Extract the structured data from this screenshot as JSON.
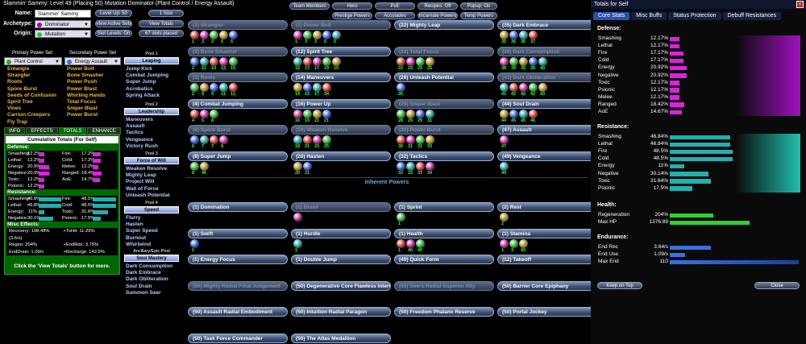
{
  "title": "Slammin' Sammy: Level 49 (Placing 50) Mutation Dominator (Plant Control / Energy Assault)",
  "name_label": "Name:",
  "name_value": "Slammin' Sammy",
  "archetype_label": "Archetype:",
  "archetype_value": "Dominator",
  "origin_label": "Origin:",
  "origin_value": "Mutation",
  "buttons": {
    "level_up": "Level Up: 50",
    "i_size": "1 Size",
    "view_active_sets": "View Active Sets",
    "view_totals": "View Totals",
    "slot_levels": "Slot Levels: On",
    "slots_placed": "67 slots placed"
  },
  "topbar": [
    "Team Members",
    "Hero",
    "PvE",
    "Recipes: Off",
    "Popup: On",
    "Prestige Powers",
    "Accolades",
    "Incarnate Powers",
    "Temp Powers"
  ],
  "primary_set_hdr": "Primary Power Set",
  "secondary_set_hdr": "Secondary Power Set",
  "pool1_hdr": "Pool 1",
  "primary_set": "Plant Control",
  "secondary_set": "Energy Assault",
  "primary_powers": [
    "Entangle",
    "Strangler",
    "Roots",
    "Spore Burst",
    "Seeds of Confusion",
    "Spirit Tree",
    "Vines",
    "Carrion Creepers",
    "Fly Trap"
  ],
  "secondary_powers": [
    "Power Bolt",
    "Bone Smasher",
    "Power Push",
    "Power Blast",
    "Whirling Hands",
    "Total Focus",
    "Sniper Blast",
    "Power Burst"
  ],
  "pools": [
    {
      "title": "Pool 1",
      "name": "Leaping",
      "powers": [
        "Jump Kick",
        "Combat Jumping",
        "Super Jump",
        "Acrobatics",
        "Spring Attack"
      ]
    },
    {
      "title": "Pool 2",
      "name": "Leadership",
      "powers": [
        "Maneuvers",
        "Assault",
        "Tactics",
        "Vengeance",
        "Victory Rush"
      ]
    },
    {
      "title": "Pool 3",
      "name": "Force of Will",
      "powers": [
        "Weaken Resolve",
        "Mighty Leap",
        "Project Will",
        "Wall of Force",
        "Unleash Potential"
      ]
    },
    {
      "title": "Pool 4",
      "name": "Speed",
      "powers": [
        "Flurry",
        "Hasten",
        "Super Speed",
        "Burnout",
        "Whirlwind"
      ]
    },
    {
      "title": "Ancillary/Epic Pool",
      "name": "Soul Mastery",
      "powers": [
        "Dark Consumption",
        "Dark Embrace",
        "Dark Obliteration",
        "Soul Drain",
        "Summon Seer"
      ]
    }
  ],
  "tabs": [
    "INFO",
    "EFFECTS",
    "TOTALS",
    "ENHANCE"
  ],
  "cumulative": {
    "title": "Cumulative Totals (For Self)",
    "defense_label": "Defense:",
    "defense": [
      [
        "Smashing:",
        "12.2%",
        12.2
      ],
      [
        "Fire:",
        "17.2%",
        17.2
      ],
      [
        "Lethal:",
        "12.2%",
        12.2
      ],
      [
        "Cold:",
        "17.2%",
        17.2
      ],
      [
        "Energy:",
        "20.9%",
        20.9
      ],
      [
        "Melee:",
        "12.2%",
        12.2
      ],
      [
        "Negative:",
        "20.9%",
        20.9
      ],
      [
        "Ranged:",
        "18.4%",
        18.4
      ],
      [
        "Toxic:",
        "12.2%",
        12.2
      ],
      [
        "AoE:",
        "14.7%",
        14.7
      ],
      [
        "Psionic:",
        "12.2%",
        12.2
      ]
    ],
    "resistance_label": "Resistance:",
    "resistance": [
      [
        "Smashing:",
        "46.8%",
        46.8
      ],
      [
        "Fire:",
        "48.5%",
        48.5
      ],
      [
        "Lethal:",
        "46.8%",
        46.8
      ],
      [
        "Cold:",
        "48.5%",
        48.5
      ],
      [
        "Energy:",
        "11%",
        11
      ],
      [
        "Toxic:",
        "31.6%",
        31.6
      ],
      [
        "Negative:",
        "30.1%",
        30.1
      ],
      [
        "Psionic:",
        "17.5%",
        17.5
      ]
    ],
    "misc_label": "Misc Effects:",
    "misc": [
      "Recovery: 198.48% (3.6/s)",
      "+ToHit: 11.29%",
      "Regen: 204%",
      "+EndRdx: 3.75%",
      "EndDrain: 1.09/s",
      "+Recharge: 142.5%"
    ],
    "footer": "Click the 'View Totals' button for more."
  },
  "slots": [
    {
      "label": "(1) Strangler",
      "dim": true,
      "enh": 5,
      "lv": [
        "1",
        "3",
        "3",
        "5",
        "5"
      ]
    },
    {
      "label": "(1) Power Bolt",
      "dim": true,
      "enh": 5,
      "lv": [
        "1",
        "3",
        "3",
        "5",
        "5"
      ]
    },
    {
      "label": "(22) Mighty Leap",
      "dim": false,
      "enh": 0,
      "lv": []
    },
    {
      "label": "(35) Dark Embrace",
      "dim": false,
      "enh": 4,
      "lv": [
        "35",
        "36",
        "36",
        "37"
      ]
    },
    {
      "label": "(2) Bone Smasher",
      "dim": true,
      "enh": 5,
      "lv": [
        "2",
        "11",
        "13",
        "13",
        "15"
      ]
    },
    {
      "label": "(12) Spirit Tree",
      "dim": false,
      "enh": 5,
      "lv": [
        "12",
        "17",
        "17",
        "19",
        "19"
      ]
    },
    {
      "label": "(22) Total Focus",
      "dim": true,
      "enh": 4,
      "lv": [
        "22",
        "23",
        "23",
        "25"
      ]
    },
    {
      "label": "(38) Dark Consumption",
      "dim": true,
      "enh": 5,
      "lv": [
        "38",
        "39",
        "39",
        "39",
        "40"
      ]
    },
    {
      "label": "(2) Roots",
      "dim": true,
      "enh": 5,
      "lv": [
        "2",
        "9",
        "9",
        "11",
        "11"
      ]
    },
    {
      "label": "(14) Maneuvers",
      "dim": false,
      "enh": 4,
      "lv": [
        "14",
        "15",
        "17",
        "34"
      ]
    },
    {
      "label": "(26) Unleash Potential",
      "dim": false,
      "enh": 1,
      "lv": [
        "26"
      ]
    },
    {
      "label": "(41) Dark Obliteration",
      "dim": true,
      "enh": 5,
      "lv": [
        "41",
        "42",
        "42",
        "42",
        "43"
      ]
    },
    {
      "label": "(4) Combat Jumping",
      "dim": false,
      "enh": 3,
      "lv": [
        "4",
        "5",
        "8"
      ]
    },
    {
      "label": "(16) Power Up",
      "dim": false,
      "enh": 4,
      "lv": [
        "16",
        "19",
        "21",
        "21"
      ]
    },
    {
      "label": "(28) Sniper Blast",
      "dim": true,
      "enh": 4,
      "lv": [
        "28",
        "29",
        "29",
        "31"
      ]
    },
    {
      "label": "(44) Soul Drain",
      "dim": false,
      "enh": 4,
      "lv": [
        "44",
        "45",
        "45",
        "46"
      ]
    },
    {
      "label": "(6) Spore Burst",
      "dim": true,
      "enh": 4,
      "lv": [
        "6",
        "7",
        "7",
        "9"
      ]
    },
    {
      "label": "(18) Weaken Resolve",
      "dim": true,
      "enh": 4,
      "lv": [
        "18",
        "21",
        "23",
        "25"
      ]
    },
    {
      "label": "(30) Power Burst",
      "dim": true,
      "enh": 4,
      "lv": [
        "30",
        "31",
        "31",
        "33"
      ]
    },
    {
      "label": "(47) Assault",
      "dim": false,
      "enh": 1,
      "lv": [
        "47"
      ]
    },
    {
      "label": "(8) Super Jump",
      "dim": false,
      "enh": 2,
      "lv": [
        "8",
        "46"
      ]
    },
    {
      "label": "(20) Hasten",
      "dim": false,
      "enh": 2,
      "lv": [
        "20",
        "21"
      ]
    },
    {
      "label": "(32) Tactics",
      "dim": false,
      "enh": 4,
      "lv": [
        "32",
        "33",
        "33",
        "34"
      ]
    },
    {
      "label": "(49) Vengeance",
      "dim": false,
      "enh": 1,
      "lv": [
        "49"
      ]
    }
  ],
  "inherent_title": "Inherent Powers",
  "inherent": [
    {
      "label": "(1) Domination",
      "dim": false,
      "enh": 0,
      "lv": []
    },
    {
      "label": "(1) Brawl",
      "dim": true,
      "enh": 1,
      "lv": [
        ""
      ]
    },
    {
      "label": "(1) Sprint",
      "dim": false,
      "enh": 1,
      "lv": [
        "1"
      ]
    },
    {
      "label": "(2) Rest",
      "dim": false,
      "enh": 1,
      "lv": [
        "2"
      ]
    },
    {
      "label": "(1) Swift",
      "dim": false,
      "enh": 1,
      "lv": [
        "1"
      ]
    },
    {
      "label": "(1) Hurdle",
      "dim": false,
      "enh": 1,
      "lv": [
        "1"
      ]
    },
    {
      "label": "(1) Health",
      "dim": false,
      "enh": 3,
      "lv": [
        "1",
        "40",
        "40"
      ]
    },
    {
      "label": "(1) Stamina",
      "dim": false,
      "enh": 3,
      "lv": [
        "1",
        "3",
        "43"
      ]
    },
    {
      "label": "(1) Energy Focus",
      "dim": false,
      "enh": 0,
      "lv": []
    },
    {
      "label": "(1) Double Jump",
      "dim": false,
      "enh": 0,
      "lv": []
    },
    {
      "label": "(49) Quick Form",
      "dim": false,
      "enh": 0,
      "lv": []
    },
    {
      "label": "(12) Takeoff",
      "dim": false,
      "enh": 0,
      "lv": []
    },
    {
      "label": "(50) Mighty Radial Final Judgement",
      "dim": true,
      "enh": 0,
      "lv": []
    },
    {
      "label": "(50) Degenerative Core Flawless Interface",
      "dim": false,
      "enh": 0,
      "lv": []
    },
    {
      "label": "(50) Seers Radial Superior Ally",
      "dim": true,
      "enh": 0,
      "lv": []
    },
    {
      "label": "(50) Barrier Core Epiphany",
      "dim": false,
      "enh": 0,
      "lv": []
    },
    {
      "label": "(50) Assault Radial Embodiment",
      "dim": false,
      "enh": 0,
      "lv": []
    },
    {
      "label": "(50) Intuition Radial Paragon",
      "dim": false,
      "enh": 0,
      "lv": []
    },
    {
      "label": "(50) Freedom Phalanx Reserve",
      "dim": false,
      "enh": 0,
      "lv": []
    },
    {
      "label": "(50) Portal Jockey",
      "dim": false,
      "enh": 0,
      "lv": []
    },
    {
      "label": "(50) Task Force Commander",
      "dim": false,
      "enh": 0,
      "lv": []
    },
    {
      "label": "(50) The Atlas Medallion",
      "dim": false,
      "enh": 0,
      "lv": []
    }
  ],
  "right": {
    "title": "Totals for Self",
    "close": "×",
    "tabs": [
      "Core Stats",
      "Misc Buffs",
      "Status Protection",
      "Debuff Resistances"
    ],
    "defense_label": "Defense:",
    "defense": [
      [
        "Smashing",
        "12.17%",
        12.17
      ],
      [
        "Lethal",
        "12.17%",
        12.17
      ],
      [
        "Fire",
        "17.17%",
        17.17
      ],
      [
        "Cold",
        "17.17%",
        17.17
      ],
      [
        "Energy",
        "20.92%",
        20.92
      ],
      [
        "Negative",
        "20.92%",
        20.92
      ],
      [
        "Toxic",
        "12.17%",
        12.17
      ],
      [
        "Psionic",
        "12.17%",
        12.17
      ],
      [
        "Melee",
        "12.17%",
        12.17
      ],
      [
        "Ranged",
        "18.42%",
        18.42
      ],
      [
        "AoE",
        "14.67%",
        14.67
      ]
    ],
    "resistance_label": "Resistance:",
    "resistance": [
      [
        "Smashing",
        "46.84%",
        46.84
      ],
      [
        "Lethal",
        "46.84%",
        46.84
      ],
      [
        "Fire",
        "48.5%",
        48.5
      ],
      [
        "Cold",
        "48.5%",
        48.5
      ],
      [
        "Energy",
        "11%",
        11
      ],
      [
        "Negative",
        "30.14%",
        30.14
      ],
      [
        "Toxic",
        "31.64%",
        31.64
      ],
      [
        "Psionic",
        "17.5%",
        17.5
      ]
    ],
    "health_label": "Health:",
    "health": [
      [
        "Regeneration",
        "204%",
        0.34
      ],
      [
        "Max HP",
        "1376.89",
        0.62
      ]
    ],
    "endurance_label": "Endurance:",
    "endurance": [
      [
        "End Rec",
        "3.64/s",
        0.32
      ],
      [
        "End Use",
        "1.09/s",
        0.12
      ],
      [
        "Max End",
        "110",
        1.0
      ]
    ],
    "keep_on_top": "Keep on Top",
    "close_btn": "Close"
  },
  "colors": {
    "pink": "#e020e0",
    "teal": "#20b0b0",
    "green": "#30d030",
    "blue": "#3a70e0"
  }
}
